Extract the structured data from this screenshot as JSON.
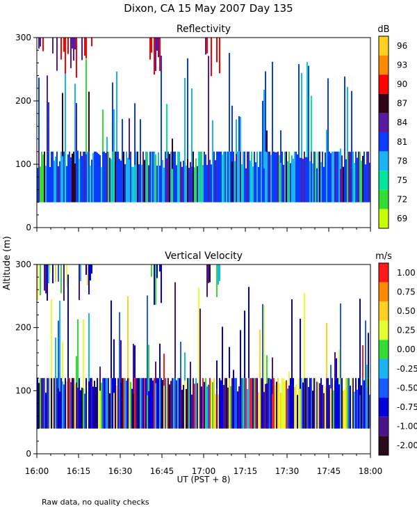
{
  "title": "Dixon, CA 15 May 2007  Day 135",
  "footnote": "Raw data, no quality checks",
  "chart_data": [
    {
      "type": "heatmap",
      "title": "Reflectivity",
      "xlabel": "UT  (PST + 8)",
      "ylabel": "Altitude (m)",
      "x_ticks": [
        "16:00",
        "16:15",
        "16:30",
        "16:45",
        "17:00",
        "17:15",
        "17:30",
        "17:45",
        "18:00"
      ],
      "x_range": [
        "16:00",
        "18:00"
      ],
      "y_ticks": [
        0,
        100,
        200,
        300
      ],
      "ylim": [
        0,
        300
      ],
      "colorbar": {
        "unit": "dB",
        "labels": [
          "96",
          "93",
          "90",
          "87",
          "84",
          "81",
          "78",
          "75",
          "72",
          "69"
        ],
        "colors": [
          "#ffd21f",
          "#ff8a00",
          "#ff0000",
          "#33001a",
          "#5a1aa0",
          "#0a3cff",
          "#1ab4f0",
          "#00e6a0",
          "#33dd33",
          "#c8ff00"
        ]
      },
      "data_floor_m": 40,
      "dense_layer_top_m": 120,
      "series_note": "Dense echoes from ~40 m to ~120 m throughout the period; intermittent columns up to ~200-260 m; sparse high-dB echoes near 300 m before ~16:20, around 16:40-16:45 and 17:00-17:05."
    },
    {
      "type": "heatmap",
      "title": "Vertical Velocity",
      "xlabel": "UT  (PST + 8)",
      "ylabel": "Altitude (m)",
      "x_ticks": [
        "16:00",
        "16:15",
        "16:30",
        "16:45",
        "17:00",
        "17:15",
        "17:30",
        "17:45",
        "18:00"
      ],
      "x_range": [
        "16:00",
        "18:00"
      ],
      "y_ticks": [
        0,
        100,
        200,
        300
      ],
      "ylim": [
        0,
        300
      ],
      "colorbar": {
        "unit": "m/s",
        "labels": [
          "1.00",
          "0.75",
          "0.50",
          "0.25",
          "0.00",
          "-0.25",
          "-0.50",
          "-0.75",
          "-1.00",
          "-2.00"
        ],
        "colors": [
          "#ff1a1a",
          "#ff8a00",
          "#ffd21f",
          "#e6ff33",
          "#33dd33",
          "#1ab4f0",
          "#1a5aff",
          "#0000dd",
          "#4a148c",
          "#2a0a1a"
        ]
      },
      "data_floor_m": 40,
      "dense_layer_top_m": 120
    }
  ]
}
